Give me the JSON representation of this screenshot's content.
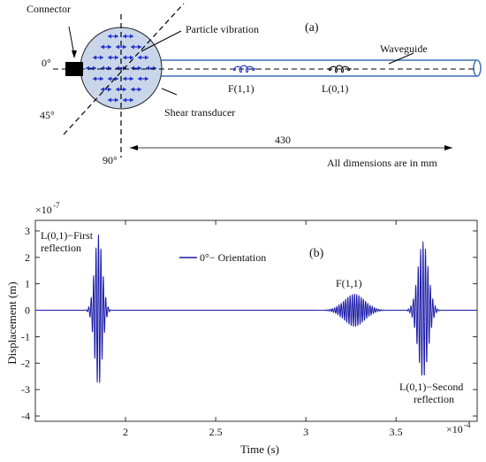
{
  "panel_a": {
    "label": "(a)",
    "connector": "Connector",
    "particle_vibration": "Particle vibration",
    "waveguide": "Waveguide",
    "shear_transducer": "Shear transducer",
    "angle_0": "0°",
    "angle_45": "45°",
    "angle_90": "90°",
    "mode_f": "F(1,1)",
    "mode_l": "L(0,1)",
    "length": "430",
    "units_note": "All dimensions are in mm",
    "colors": {
      "disc_fill": "#c9d6ea",
      "arrow": "#2233cc",
      "connector": "#000000",
      "tube": "#4a78b8"
    }
  },
  "chart_data": {
    "type": "line",
    "panel_label": "(b)",
    "xlabel": "Time (s)",
    "ylabel": "Displacement (m)",
    "x_exponent_label": "×10",
    "x_exponent": "-4",
    "y_exponent_label": "×10",
    "y_exponent": "-7",
    "xlim": [
      1.5,
      3.95
    ],
    "ylim": [
      -4.2,
      3.4
    ],
    "x_ticks": [
      2,
      2.5,
      3,
      3.5
    ],
    "x_tick_labels": [
      "2",
      "2.5",
      "3",
      "3.5"
    ],
    "y_ticks": [
      -4,
      -3,
      -2,
      -1,
      0,
      1,
      2,
      3
    ],
    "y_tick_labels": [
      "-4",
      "-3",
      "-2",
      "-1",
      "0",
      "1",
      "2",
      "3"
    ],
    "legend_position": "top-center",
    "series": [
      {
        "name": "0°− Orientation",
        "color": "#1a1aa8",
        "packets": [
          {
            "center": 1.85,
            "amplitude": 2.9,
            "half_width": 0.045,
            "period": 0.0135
          },
          {
            "center": 3.27,
            "amplitude": 0.62,
            "half_width": 0.12,
            "period": 0.0123
          },
          {
            "center": 3.65,
            "amplitude": 2.6,
            "half_width": 0.06,
            "period": 0.0135
          }
        ]
      }
    ],
    "annotations": [
      {
        "text_line1": "L(0,1)−First",
        "text_line2": "reflection"
      },
      {
        "text_line1": "F(1,1)"
      },
      {
        "text_line1": "L(0,1)−Second",
        "text_line2": "reflection"
      }
    ]
  }
}
